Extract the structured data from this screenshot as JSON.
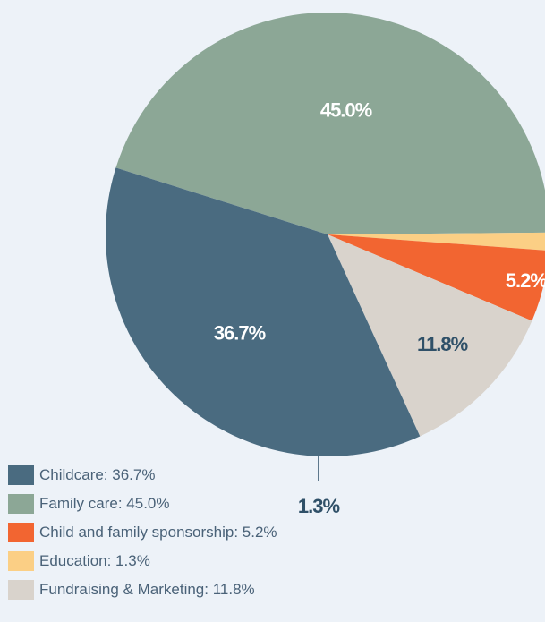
{
  "chart_data": {
    "type": "pie",
    "categories": [
      "Childcare",
      "Family care",
      "Child and family sponsorship",
      "Education",
      "Fundraising & Marketing"
    ],
    "values": [
      36.7,
      45.0,
      5.2,
      1.3,
      11.8
    ],
    "slice_labels": [
      "36.7%",
      "45.0%",
      "5.2%",
      "1.3%",
      "11.8%"
    ],
    "colors": [
      "#4a6b80",
      "#8ca796",
      "#f26531",
      "#fbcf85",
      "#d9d3cc"
    ],
    "label_colors": [
      "#ffffff",
      "#ffffff",
      "#ffffff",
      "#2f5068",
      "#2f5068"
    ],
    "legend": [
      {
        "label": "Childcare: 36.7%",
        "color": "#4a6b80"
      },
      {
        "label": "Family care: 45.0%",
        "color": "#8ca796"
      },
      {
        "label": "Child and family sponsorship: 5.2%",
        "color": "#f26531"
      },
      {
        "label": "Education: 1.3%",
        "color": "#fbcf85"
      },
      {
        "label": "Fundraising & Marketing: 11.8%",
        "color": "#d9d3cc"
      }
    ],
    "legend_position": "bottom-left"
  }
}
